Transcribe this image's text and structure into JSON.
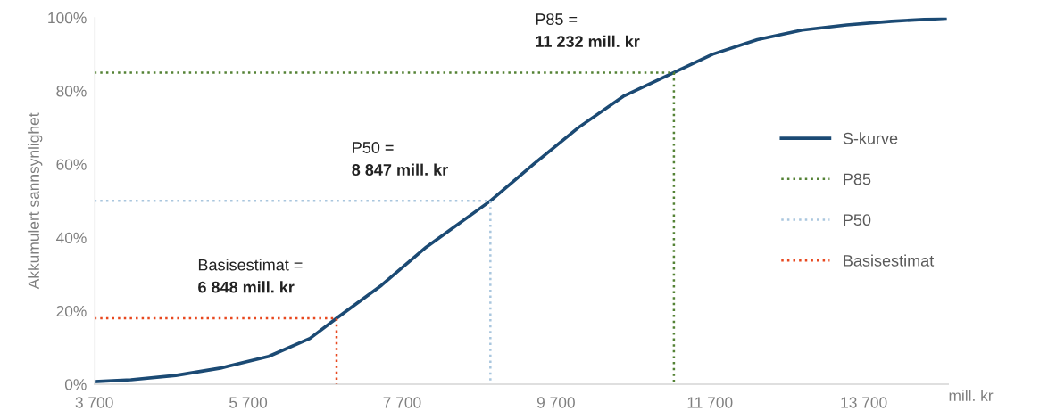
{
  "chart_data": {
    "type": "line",
    "ylabel": "Akkumulert sannsynlighet",
    "xlabel": "mill. kr",
    "xlim": [
      3700,
      14800
    ],
    "xticks": [
      {
        "value": 3700,
        "label": "3 700"
      },
      {
        "value": 5700,
        "label": "5 700"
      },
      {
        "value": 7700,
        "label": "7 700"
      },
      {
        "value": 9700,
        "label": "9 700"
      },
      {
        "value": 11700,
        "label": "11 700"
      },
      {
        "value": 13700,
        "label": "13 700"
      }
    ],
    "ylim": [
      0,
      100
    ],
    "yticks": [
      {
        "value": 0,
        "label": "0%"
      },
      {
        "value": 20,
        "label": "20%"
      },
      {
        "value": 40,
        "label": "40%"
      },
      {
        "value": 60,
        "label": "60%"
      },
      {
        "value": 80,
        "label": "80%"
      },
      {
        "value": 100,
        "label": "100%"
      }
    ],
    "grid": false,
    "legend": "center right",
    "marker": "none",
    "series": [
      {
        "name": "S-kurve",
        "color": "#1b4a74",
        "line_style": "solid",
        "x": [
          3700,
          4177,
          4758,
          5340,
          5967,
          6502,
          6848,
          7433,
          8014,
          8847,
          9409,
          9991,
          10572,
          11232,
          11735,
          12316,
          12898,
          13479,
          14060,
          14758
        ],
        "values": [
          0.7,
          1.2,
          2.4,
          4.4,
          7.6,
          12.5,
          18,
          27,
          37.4,
          50,
          60,
          70,
          78.5,
          85,
          90,
          94,
          96.6,
          98,
          99,
          99.8
        ]
      },
      {
        "name": "P85",
        "color": "#548235",
        "line_style": "dotted",
        "x": [
          3700,
          11232,
          11232
        ],
        "values": [
          85,
          85,
          0
        ]
      },
      {
        "name": "P50",
        "color": "#a9c6de",
        "line_style": "dotted",
        "x": [
          3700,
          8847,
          8847
        ],
        "values": [
          50,
          50,
          0
        ]
      },
      {
        "name": "Basisestimat",
        "color": "#e8481f",
        "line_style": "dotted",
        "x": [
          3700,
          6848,
          6848
        ],
        "values": [
          18,
          18,
          0
        ]
      }
    ],
    "annotations": [
      "P85 =",
      "11 232 mill. kr",
      "P50 =",
      "8 847 mill. kr",
      "Basisestimat =",
      "6 848 mill. kr"
    ]
  }
}
